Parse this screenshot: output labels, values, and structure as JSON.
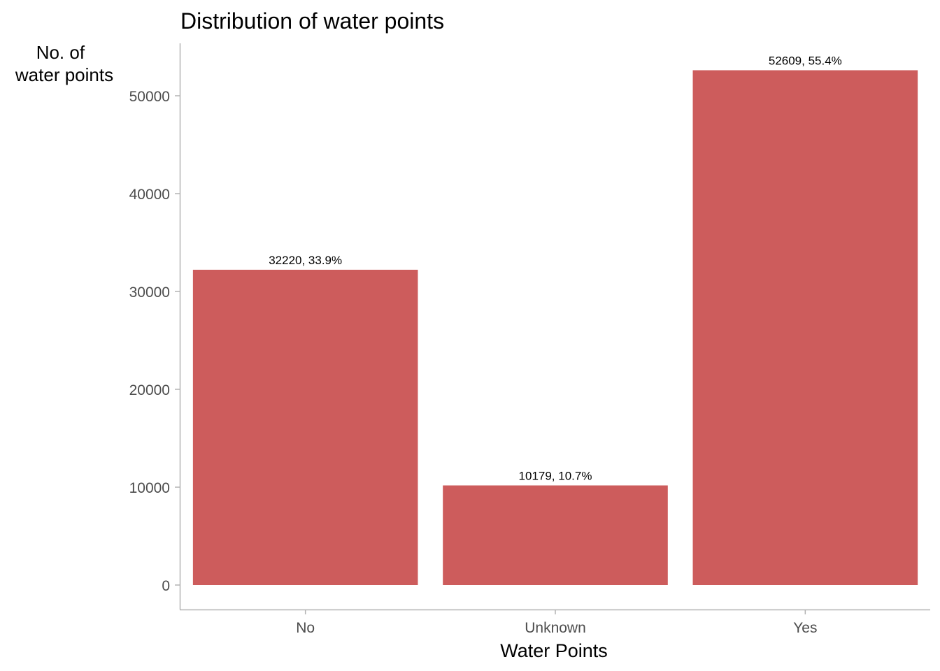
{
  "chart_data": {
    "type": "bar",
    "title": "Distribution of water points",
    "xlabel": "Water Points",
    "ylabel_lines": [
      "No. of",
      "water points"
    ],
    "categories": [
      "No",
      "Unknown",
      "Yes"
    ],
    "values": [
      32220,
      10179,
      52609
    ],
    "data_labels": [
      "32220, 33.9%",
      "10179, 10.7%",
      "52609, 55.4%"
    ],
    "yticks": [
      0,
      10000,
      20000,
      30000,
      40000,
      50000
    ],
    "ytick_labels": [
      "0",
      "10000",
      "20000",
      "30000",
      "40000",
      "50000"
    ],
    "ylim": [
      0,
      55240
    ],
    "grid": false,
    "legend": "none",
    "bar_color": "#cd5c5c",
    "axis_color": "#b3b3b3"
  }
}
